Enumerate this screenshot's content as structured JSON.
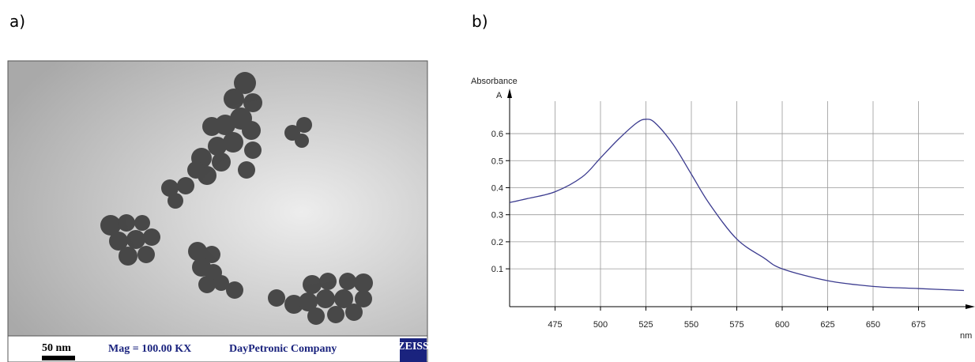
{
  "panels": {
    "a": {
      "label": "a)",
      "scale_bar": "50 nm",
      "magnification": "Mag = 100.00 KX",
      "company": "DayPetronic Company",
      "brand": "ZEISS"
    },
    "b": {
      "label": "b)"
    }
  },
  "chart_data": {
    "type": "line",
    "y_title": "Absorbance",
    "y_unit": "A",
    "x_unit": "nm",
    "x": [
      450,
      460,
      475,
      490,
      500,
      510,
      520,
      525,
      530,
      540,
      550,
      560,
      575,
      590,
      600,
      625,
      650,
      675,
      700
    ],
    "series": [
      {
        "color": "#3b3b8f",
        "values": [
          0.345,
          0.36,
          0.385,
          0.44,
          0.51,
          0.58,
          0.64,
          0.653,
          0.64,
          0.56,
          0.45,
          0.34,
          0.21,
          0.14,
          0.1,
          0.056,
          0.035,
          0.027,
          0.02
        ]
      }
    ],
    "xlim": [
      450,
      700
    ],
    "ylim": [
      -0.04,
      0.72
    ],
    "xticks": [
      475,
      500,
      525,
      550,
      575,
      600,
      625,
      650,
      675
    ],
    "yticks": [
      0.1,
      0.2,
      0.3,
      0.4,
      0.5,
      0.6
    ],
    "grid": true
  }
}
